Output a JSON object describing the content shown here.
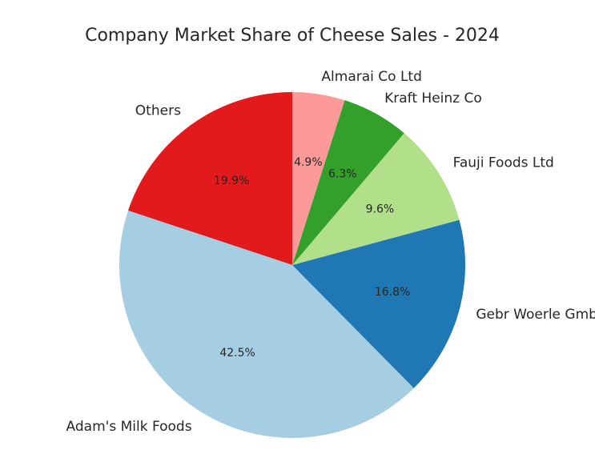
{
  "chart_data": {
    "type": "pie",
    "title": "Company Market Share of Cheese Sales - 2024",
    "start_angle_deg": 90,
    "direction": "counterclockwise",
    "slices": [
      {
        "label": "Others",
        "value": 19.9,
        "pct_label": "19.9%",
        "color": "#e31a1c"
      },
      {
        "label": "Adam's Milk Foods",
        "value": 42.5,
        "pct_label": "42.5%",
        "color": "#a6cee3"
      },
      {
        "label": "Gebr Woerle GmbH",
        "value": 16.8,
        "pct_label": "16.8%",
        "color": "#1f78b4"
      },
      {
        "label": "Fauji Foods Ltd",
        "value": 9.6,
        "pct_label": "9.6%",
        "color": "#b2df8a"
      },
      {
        "label": "Kraft Heinz Co",
        "value": 6.3,
        "pct_label": "6.3%",
        "color": "#33a02c"
      },
      {
        "label": "Almarai Co Ltd",
        "value": 4.9,
        "pct_label": "4.9%",
        "color": "#fb9a99"
      }
    ]
  }
}
